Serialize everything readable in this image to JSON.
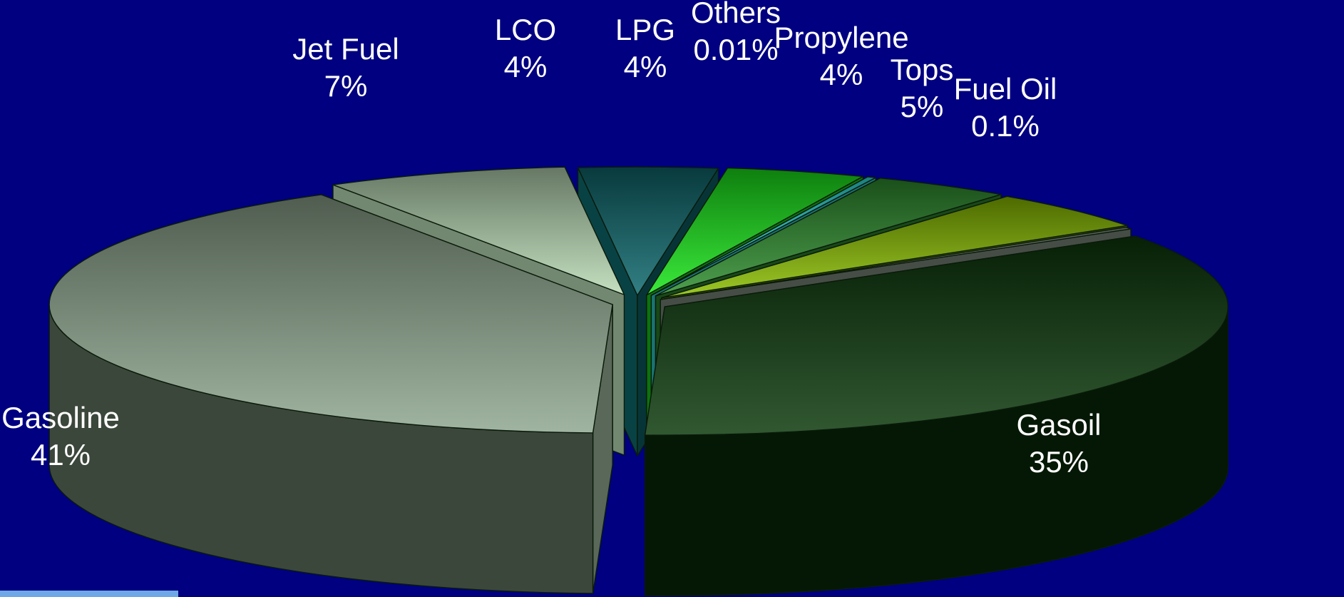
{
  "chart_data": {
    "type": "pie",
    "style": "3d-exploded",
    "title": "",
    "slices": [
      {
        "name": "Gasoline",
        "value_label": "41%",
        "value": 41,
        "color": "#8fa890"
      },
      {
        "name": "Jet Fuel",
        "value_label": "7%",
        "value": 7,
        "color": "#b9dbb5"
      },
      {
        "name": "LCO",
        "value_label": "4%",
        "value": 4,
        "color": "#0e6a6e"
      },
      {
        "name": "LPG",
        "value_label": "4%",
        "value": 4,
        "color": "#19e619"
      },
      {
        "name": "Others",
        "value_label": "0.01%",
        "value": 0.01,
        "color": "#33e6e6"
      },
      {
        "name": "Propylene",
        "value_label": "4%",
        "value": 4,
        "color": "#2f8f2f"
      },
      {
        "name": "Tops",
        "value_label": "5%",
        "value": 5,
        "color": "#8cc000"
      },
      {
        "name": "Fuel Oil",
        "value_label": "0.1%",
        "value": 0.1,
        "color": "#8c9a8c"
      },
      {
        "name": "Gasoil",
        "value_label": "35%",
        "value": 35,
        "color": "#0d3a0d"
      }
    ]
  },
  "colors": {
    "background": "#000080",
    "label_text": "#ffffff",
    "corner_accent": "#6fa8e6"
  }
}
